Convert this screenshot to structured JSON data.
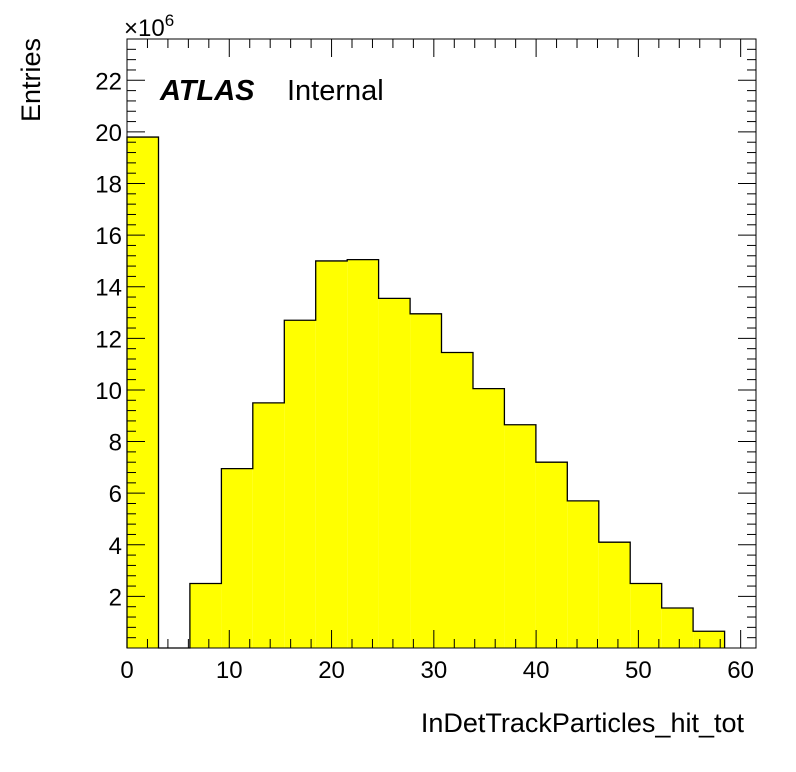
{
  "chart_data": {
    "type": "bar",
    "histogram": true,
    "xlabel": "InDetTrackParticles_hit_tot",
    "ylabel": "Entries",
    "xlim": [
      0,
      61.5
    ],
    "ylim": [
      0,
      23.6
    ],
    "y_multiplier_base": "×10",
    "y_multiplier_exp": "6",
    "x_ticks": [
      0,
      10,
      20,
      30,
      40,
      50,
      60
    ],
    "x_tick_labels": [
      "0",
      "10",
      "20",
      "30",
      "40",
      "50",
      "60"
    ],
    "y_ticks": [
      2,
      4,
      6,
      8,
      10,
      12,
      14,
      16,
      18,
      20,
      22
    ],
    "y_tick_labels": [
      "2",
      "4",
      "6",
      "8",
      "10",
      "12",
      "14",
      "16",
      "18",
      "20",
      "22"
    ],
    "bins": [
      {
        "x0": 0.0,
        "x1": 3.08,
        "value": 19.8
      },
      {
        "x0": 3.08,
        "x1": 6.15,
        "value": 0
      },
      {
        "x0": 6.15,
        "x1": 9.23,
        "value": 2.5
      },
      {
        "x0": 9.23,
        "x1": 12.3,
        "value": 6.95
      },
      {
        "x0": 12.3,
        "x1": 15.38,
        "value": 9.5
      },
      {
        "x0": 15.38,
        "x1": 18.45,
        "value": 12.7
      },
      {
        "x0": 18.45,
        "x1": 21.53,
        "value": 15.0
      },
      {
        "x0": 21.53,
        "x1": 24.6,
        "value": 15.05
      },
      {
        "x0": 24.6,
        "x1": 27.68,
        "value": 13.55
      },
      {
        "x0": 27.68,
        "x1": 30.75,
        "value": 12.95
      },
      {
        "x0": 30.75,
        "x1": 33.83,
        "value": 11.45
      },
      {
        "x0": 33.83,
        "x1": 36.9,
        "value": 10.05
      },
      {
        "x0": 36.9,
        "x1": 39.98,
        "value": 8.65
      },
      {
        "x0": 39.98,
        "x1": 43.05,
        "value": 7.2
      },
      {
        "x0": 43.05,
        "x1": 46.13,
        "value": 5.7
      },
      {
        "x0": 46.13,
        "x1": 49.2,
        "value": 4.1
      },
      {
        "x0": 49.2,
        "x1": 52.28,
        "value": 2.5
      },
      {
        "x0": 52.28,
        "x1": 55.35,
        "value": 1.55
      },
      {
        "x0": 55.35,
        "x1": 58.43,
        "value": 0.65
      }
    ],
    "fill_color": "#ffff00",
    "line_color": "#000000",
    "grid": false
  },
  "annotation": {
    "atlas": "ATLAS",
    "status": "Internal"
  }
}
